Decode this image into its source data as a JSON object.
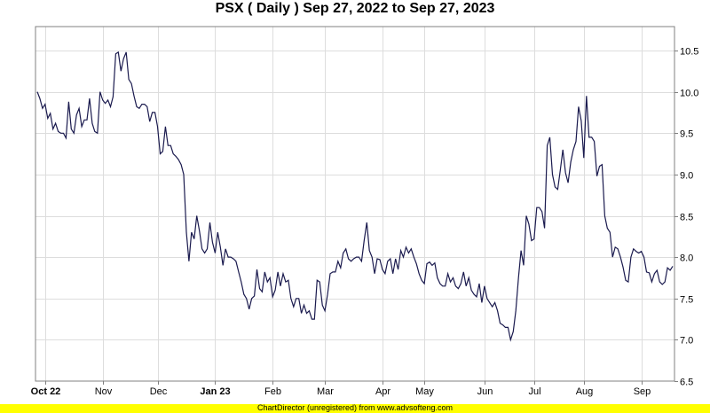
{
  "header": {
    "title": "PSX ( Daily ) Sep 27, 2022 to Sep 27, 2023"
  },
  "footer": {
    "text": "ChartDirector (unregistered) from www.advsofteng.com"
  },
  "colors": {
    "line": "#1a1a4e",
    "grid": "#dddddd",
    "axis": "#808080",
    "footer_bg": "#ffff00"
  },
  "chart_data": {
    "type": "line",
    "title": "PSX ( Daily ) Sep 27, 2022 to Sep 27, 2023",
    "xlabel": "",
    "ylabel": "",
    "ylim": [
      6.5,
      10.8
    ],
    "grid": true,
    "legend": null,
    "y_ticks": [
      6.5,
      7.0,
      7.5,
      8.0,
      8.5,
      9.0,
      9.5,
      10.0,
      10.5
    ],
    "x_ticks": [
      {
        "label": "Oct 22",
        "bold": true,
        "index": 3
      },
      {
        "label": "Nov",
        "bold": false,
        "index": 25
      },
      {
        "label": "Dec",
        "bold": false,
        "index": 46
      },
      {
        "label": "Jan 23",
        "bold": true,
        "index": 68
      },
      {
        "label": "Feb",
        "bold": false,
        "index": 90
      },
      {
        "label": "Mar",
        "bold": false,
        "index": 110
      },
      {
        "label": "Apr",
        "bold": false,
        "index": 132
      },
      {
        "label": "May",
        "bold": false,
        "index": 148
      },
      {
        "label": "Jun",
        "bold": false,
        "index": 171
      },
      {
        "label": "Jul",
        "bold": false,
        "index": 190
      },
      {
        "label": "Aug",
        "bold": false,
        "index": 209
      },
      {
        "label": "Sep",
        "bold": false,
        "index": 231
      }
    ],
    "series": [
      {
        "name": "PSX",
        "values": [
          10.0,
          9.92,
          9.8,
          9.85,
          9.68,
          9.74,
          9.55,
          9.62,
          9.52,
          9.5,
          9.5,
          9.44,
          9.88,
          9.55,
          9.5,
          9.72,
          9.8,
          9.58,
          9.66,
          9.66,
          9.92,
          9.62,
          9.52,
          9.5,
          10.0,
          9.9,
          9.86,
          9.9,
          9.82,
          9.94,
          10.46,
          10.48,
          10.25,
          10.4,
          10.48,
          10.15,
          10.1,
          9.95,
          9.82,
          9.8,
          9.85,
          9.85,
          9.82,
          9.64,
          9.75,
          9.75,
          9.58,
          9.25,
          9.28,
          9.58,
          9.35,
          9.35,
          9.25,
          9.22,
          9.18,
          9.12,
          9.0,
          8.3,
          7.95,
          8.3,
          8.22,
          8.5,
          8.32,
          8.1,
          8.05,
          8.1,
          8.42,
          8.18,
          8.05,
          8.3,
          8.12,
          7.9,
          8.1,
          8.0,
          8.0,
          7.98,
          7.95,
          7.82,
          7.7,
          7.55,
          7.5,
          7.37,
          7.5,
          7.53,
          7.85,
          7.62,
          7.58,
          7.82,
          7.7,
          7.75,
          7.52,
          7.6,
          7.82,
          7.65,
          7.8,
          7.7,
          7.72,
          7.5,
          7.4,
          7.5,
          7.5,
          7.32,
          7.42,
          7.32,
          7.35,
          7.25,
          7.25,
          7.72,
          7.7,
          7.42,
          7.35,
          7.55,
          7.8,
          7.82,
          7.82,
          7.95,
          7.87,
          8.05,
          8.1,
          7.98,
          7.95,
          7.98,
          8.0,
          8.0,
          7.95,
          8.2,
          8.42,
          8.08,
          8.0,
          7.8,
          7.98,
          7.97,
          7.85,
          7.8,
          7.95,
          7.98,
          7.8,
          7.98,
          7.85,
          8.08,
          8.0,
          8.12,
          8.05,
          8.1,
          8.0,
          7.92,
          7.8,
          7.72,
          7.68,
          7.92,
          7.94,
          7.9,
          7.93,
          7.75,
          7.68,
          7.65,
          7.65,
          7.8,
          7.7,
          7.75,
          7.65,
          7.62,
          7.68,
          7.82,
          7.65,
          7.75,
          7.6,
          7.55,
          7.52,
          7.68,
          7.45,
          7.65,
          7.5,
          7.45,
          7.4,
          7.45,
          7.35,
          7.2,
          7.18,
          7.15,
          7.15,
          7.0,
          7.1,
          7.35,
          7.75,
          8.08,
          7.9,
          8.5,
          8.4,
          8.2,
          8.22,
          8.6,
          8.6,
          8.55,
          8.35,
          9.35,
          9.45,
          9.0,
          8.85,
          8.82,
          9.05,
          9.3,
          9.02,
          8.9,
          9.15,
          9.3,
          9.4,
          9.82,
          9.65,
          9.2,
          9.95,
          9.45,
          9.45,
          9.4,
          8.98,
          9.1,
          9.12,
          8.5,
          8.35,
          8.3,
          8.0,
          8.12,
          8.1,
          8.0,
          7.88,
          7.72,
          7.7,
          8.0,
          8.1,
          8.07,
          8.05,
          8.07,
          8.0,
          7.82,
          7.81,
          7.7,
          7.8,
          7.84,
          7.7,
          7.67,
          7.7,
          7.87,
          7.84,
          7.89
        ]
      }
    ]
  }
}
